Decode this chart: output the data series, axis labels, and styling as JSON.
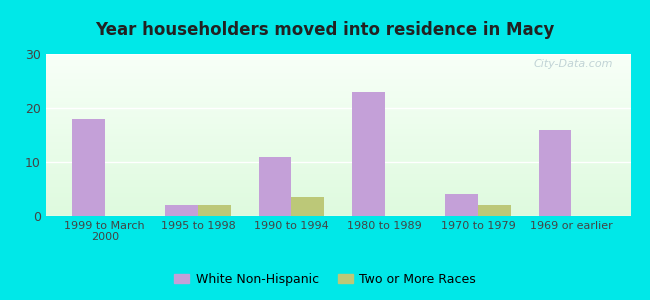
{
  "title": "Year householders moved into residence in Macy",
  "categories": [
    "1999 to March\n2000",
    "1995 to 1998",
    "1990 to 1994",
    "1980 to 1989",
    "1970 to 1979",
    "1969 or earlier"
  ],
  "white_non_hispanic": [
    18,
    2,
    11,
    23,
    4,
    16
  ],
  "two_or_more_races": [
    0,
    2,
    3.5,
    0,
    2,
    0
  ],
  "bar_color_white": "#c4a0d8",
  "bar_color_two": "#bcc878",
  "ylim": [
    0,
    30
  ],
  "yticks": [
    0,
    10,
    20,
    30
  ],
  "background_outer": "#00e8e8",
  "grid_color": "#ffffff",
  "legend_label_white": "White Non-Hispanic",
  "legend_label_two": "Two or More Races",
  "bar_width": 0.35
}
